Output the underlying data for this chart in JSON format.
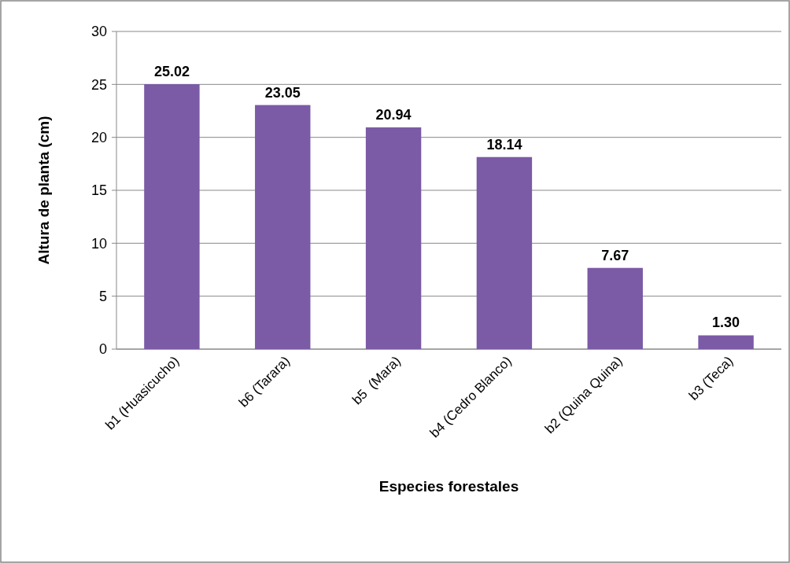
{
  "chart_data": {
    "type": "bar",
    "xlabel": "Especies forestales",
    "ylabel": "Altura de planta (cm)",
    "categories": [
      "b1 (Huasicucho)",
      "b6 (Tarara)",
      "b5  (Mara)",
      "b4 (Cedro Blanco)",
      "b2 (Quina Quina)",
      "b3 (Teca)"
    ],
    "values": [
      25.02,
      23.05,
      20.94,
      18.14,
      7.67,
      1.3
    ],
    "value_labels": [
      "25.02",
      "23.05",
      "20.94",
      "18.14",
      "7.67",
      "1.30"
    ],
    "color": "#7b5aa6",
    "ylim": [
      0,
      30
    ],
    "yticks": [
      0,
      5,
      10,
      15,
      20,
      25,
      30
    ],
    "grid": "y"
  }
}
